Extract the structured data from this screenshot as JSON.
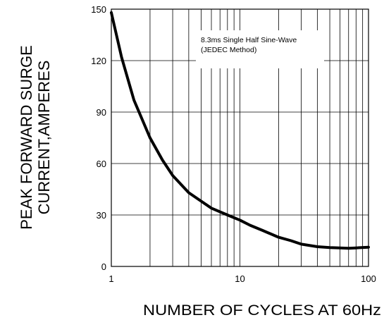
{
  "chart_data": {
    "type": "line",
    "xscale": "log",
    "xlim": [
      1,
      100
    ],
    "ylim": [
      0,
      150
    ],
    "x_ticks": [
      "1",
      "10",
      "100"
    ],
    "y_ticks": [
      "0",
      "30",
      "60",
      "90",
      "120",
      "150"
    ],
    "xlabel": "NUMBER OF CYCLES AT 60Hz",
    "ylabel_lines": [
      "PEAK FORWARD SURGE",
      "CURRENT,AMPERES"
    ],
    "annotation_lines": [
      "8.3ms Single Half Sine-Wave",
      "(JEDEC Method)"
    ],
    "grid": true,
    "series": [
      {
        "x": [
          1,
          1.2,
          1.5,
          2,
          2.5,
          3,
          4,
          5,
          6,
          8,
          10,
          12,
          15,
          20,
          25,
          30,
          40,
          50,
          60,
          70,
          80,
          100
        ],
        "y": [
          148,
          122,
          97,
          75,
          62,
          53,
          43,
          38,
          34,
          30,
          27,
          24,
          21,
          17,
          15,
          13,
          11.5,
          11,
          10.8,
          10.6,
          10.8,
          11.2
        ]
      }
    ]
  }
}
